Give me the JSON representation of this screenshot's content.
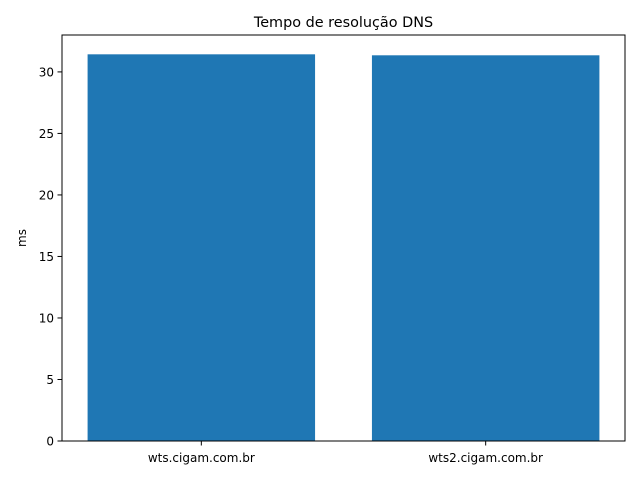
{
  "chart_data": {
    "type": "bar",
    "title": "Tempo de resolução DNS",
    "xlabel": "",
    "ylabel": "ms",
    "categories": [
      "wts.cigam.com.br",
      "wts2.cigam.com.br"
    ],
    "values": [
      31.43,
      31.35
    ],
    "ylim": [
      0,
      33.0
    ],
    "yticks": [
      0,
      5,
      10,
      15,
      20,
      25,
      30
    ],
    "grid": false,
    "bar_color": "#1f77b4"
  }
}
